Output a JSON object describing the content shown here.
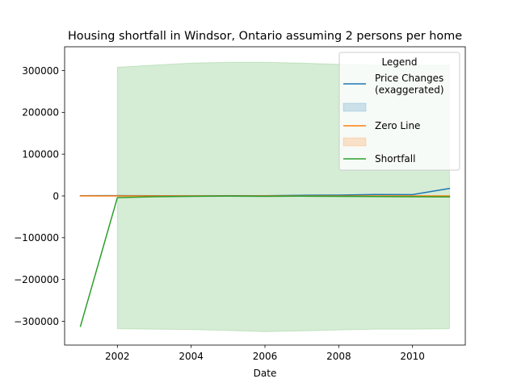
{
  "chart_data": {
    "type": "line",
    "title": "Housing shortfall in Windsor, Ontario assuming 2 persons per home",
    "xlabel": "Date",
    "ylabel": "",
    "xlim": [
      2000.57,
      2011.43
    ],
    "ylim": [
      -357000,
      357000
    ],
    "x_ticks": [
      2002,
      2004,
      2006,
      2008,
      2010
    ],
    "y_ticks": [
      -300000,
      -200000,
      -100000,
      0,
      100000,
      200000,
      300000
    ],
    "grid": false,
    "legend": {
      "title": "Legend",
      "placement": "top-right",
      "entries": [
        {
          "label": "Price Changes\n(exaggerated)",
          "kind": "line",
          "series": 0
        },
        {
          "label": "",
          "kind": "band",
          "series": 0
        },
        {
          "label": "Zero Line",
          "kind": "line",
          "series": 1
        },
        {
          "label": "",
          "kind": "band",
          "series": 1
        },
        {
          "label": "Shortfall",
          "kind": "line",
          "series": 2
        }
      ]
    },
    "series": [
      {
        "name": "Price Changes (exaggerated)",
        "color": "#1f77b4",
        "x": [
          2001,
          2002,
          2003,
          2004,
          2005,
          2006,
          2007,
          2008,
          2009,
          2010,
          2011
        ],
        "y": [
          500,
          800,
          500,
          200,
          400,
          500,
          1500,
          2000,
          3500,
          3000,
          18000
        ]
      },
      {
        "name": "Zero Line",
        "color": "#ff7f0e",
        "x": [
          2001,
          2002,
          2003,
          2004,
          2005,
          2006,
          2007,
          2008,
          2009,
          2010,
          2011
        ],
        "y": [
          0,
          0,
          0,
          0,
          0,
          0,
          0,
          0,
          0,
          0,
          0
        ]
      },
      {
        "name": "Shortfall",
        "color": "#2ca02c",
        "x": [
          2001,
          2002,
          2003,
          2004,
          2005,
          2006,
          2007,
          2008,
          2009,
          2010,
          2011
        ],
        "y": [
          -312000,
          -4000,
          -2000,
          -1000,
          -500,
          -1000,
          -500,
          -1000,
          -1500,
          -2000,
          -2500
        ],
        "band": {
          "x": [
            2002,
            2003,
            2004,
            2005,
            2006,
            2007,
            2008,
            2009,
            2010,
            2011
          ],
          "upper": [
            308000,
            313000,
            318000,
            320000,
            320000,
            318000,
            315000,
            313000,
            313000,
            313000
          ],
          "lower": [
            -318000,
            -319000,
            -320000,
            -322000,
            -325000,
            -323000,
            -321000,
            -319000,
            -319000,
            -318000
          ]
        }
      }
    ]
  }
}
